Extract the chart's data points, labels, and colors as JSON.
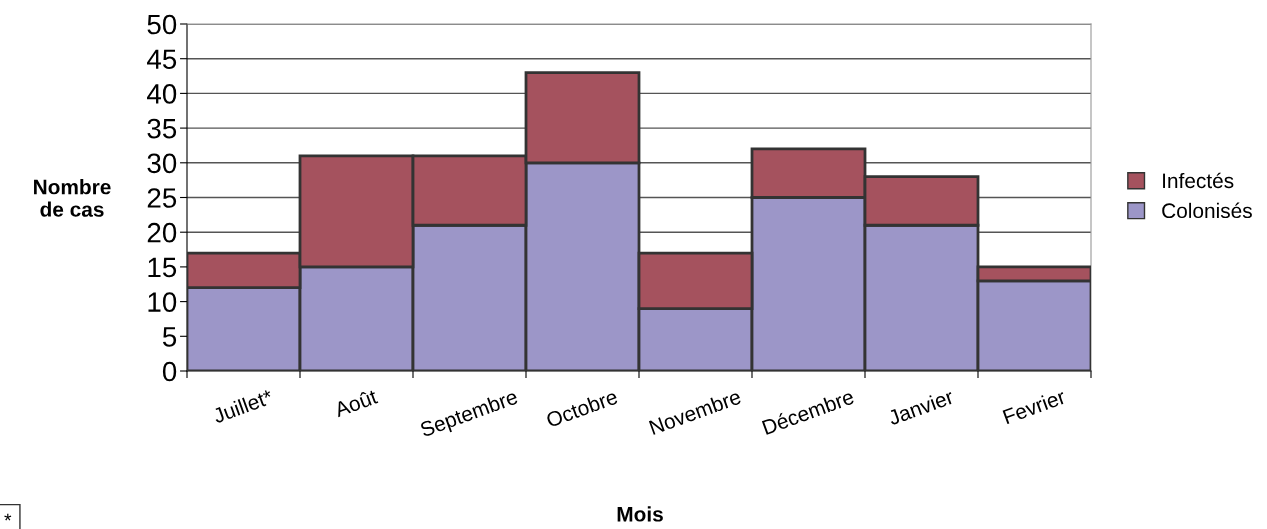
{
  "chart_data": {
    "type": "bar",
    "stacked": true,
    "xlabel": "Mois",
    "ylabel": "Nombre\nde cas",
    "categories": [
      "Juillet*",
      "Août",
      "Septembre",
      "Octobre",
      "Novembre",
      "Décembre",
      "Janvier",
      "Fevrier"
    ],
    "series": [
      {
        "name": "Colonisés",
        "color": "#9c96c8",
        "values": [
          12,
          15,
          21,
          30,
          9,
          25,
          21,
          13
        ]
      },
      {
        "name": "Infectés",
        "color": "#a5525e",
        "values": [
          5,
          16,
          10,
          13,
          8,
          7,
          7,
          2
        ]
      }
    ],
    "ylim": [
      0,
      50
    ],
    "yticks": [
      0,
      5,
      10,
      15,
      20,
      25,
      30,
      35,
      40,
      45,
      50
    ],
    "grid": "y",
    "legend": "right",
    "annotations": [
      "*"
    ]
  }
}
